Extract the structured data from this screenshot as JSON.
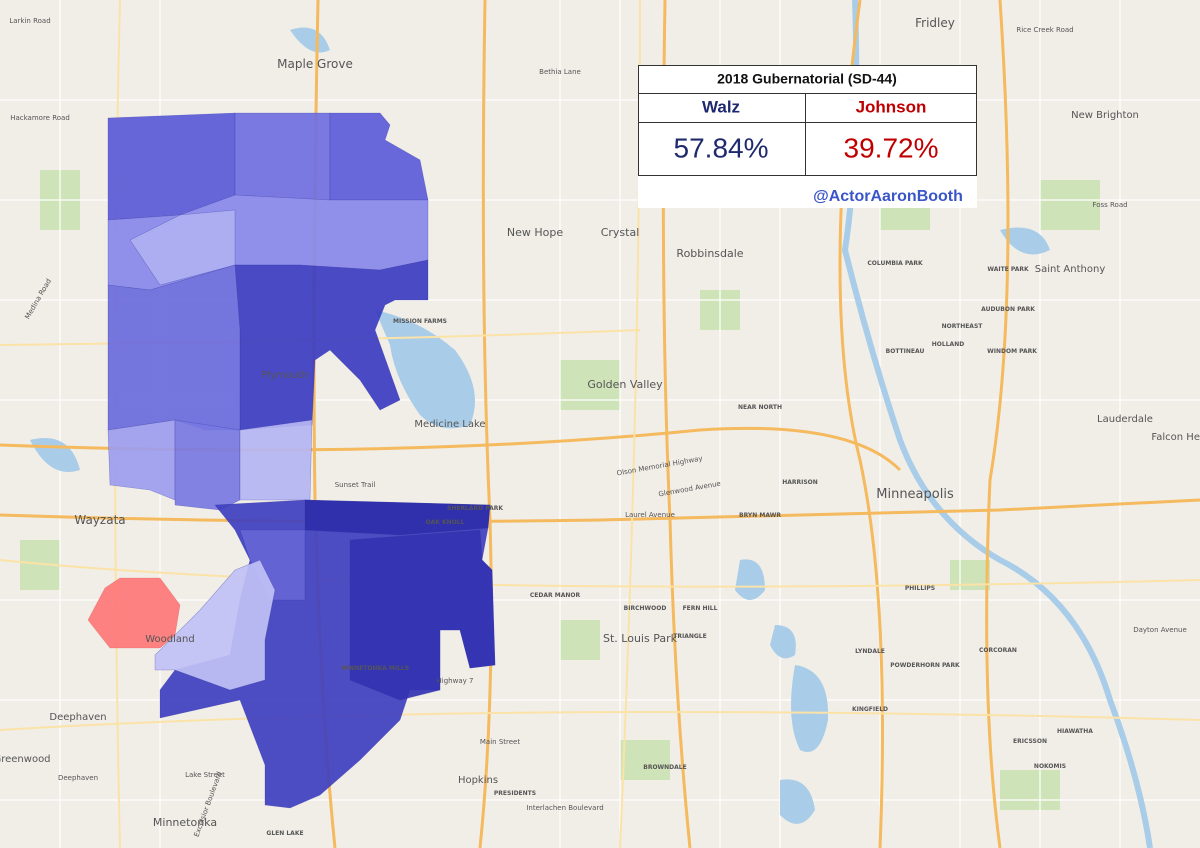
{
  "table": {
    "title": "2018 Gubernatorial (SD-44)",
    "candidates": [
      "Walz",
      "Johnson"
    ],
    "results": [
      "57.84%",
      "39.72%"
    ],
    "credit": "@ActorAaronBooth"
  },
  "map_labels": [
    "Maple Grove",
    "Fridley",
    "New Hope",
    "Crystal",
    "Robbinsdale",
    "Golden Valley",
    "Plymouth",
    "Medicine Lake",
    "Wayzata",
    "Minneapolis",
    "St. Louis Park",
    "Hopkins",
    "Minnetonka",
    "Deephaven",
    "Woodland",
    "New Brighton",
    "Saint Anthony",
    "Lauderdale",
    "MISSION FARMS",
    "Larkin Road",
    "Hackamore Road",
    "Medina Road",
    "Bethia Lane",
    "Rice Creek Road",
    "Foss Road",
    "Dayton Avenue",
    "Interlachen Boulevard",
    "Main Street",
    "Lake Street",
    "Sunset Trail",
    "Laurel Avenue",
    "Glenwood Avenue",
    "NORTHEAST",
    "HOLLAND",
    "BOTTINEAU",
    "COLUMBIA PARK",
    "WAITE PARK",
    "AUDUBON PARK",
    "WINDOM PARK",
    "NEAR NORTH",
    "HARRISON",
    "BRYN MAWR",
    "PHILLIPS",
    "POWDERHORN PARK",
    "CORCORAN",
    "NOKOMIS",
    "HIAWATHA",
    "ERICSSON",
    "LYNDALE",
    "KINGFIELD",
    "CEDAR MANOR",
    "BIRCHWOOD",
    "FERN HILL",
    "TRIANGLE",
    "BROWNDALE",
    "PRESIDENTS",
    "GLEN LAKE",
    "MINNETONKA MILLS",
    "OAK KNOLL",
    "SHERLARD PARK",
    "Olson Memorial Highway",
    "Highway 7",
    "Excelsior Boulevard",
    "Deephaven",
    "Greenwood",
    "Falcon Heights"
  ]
}
